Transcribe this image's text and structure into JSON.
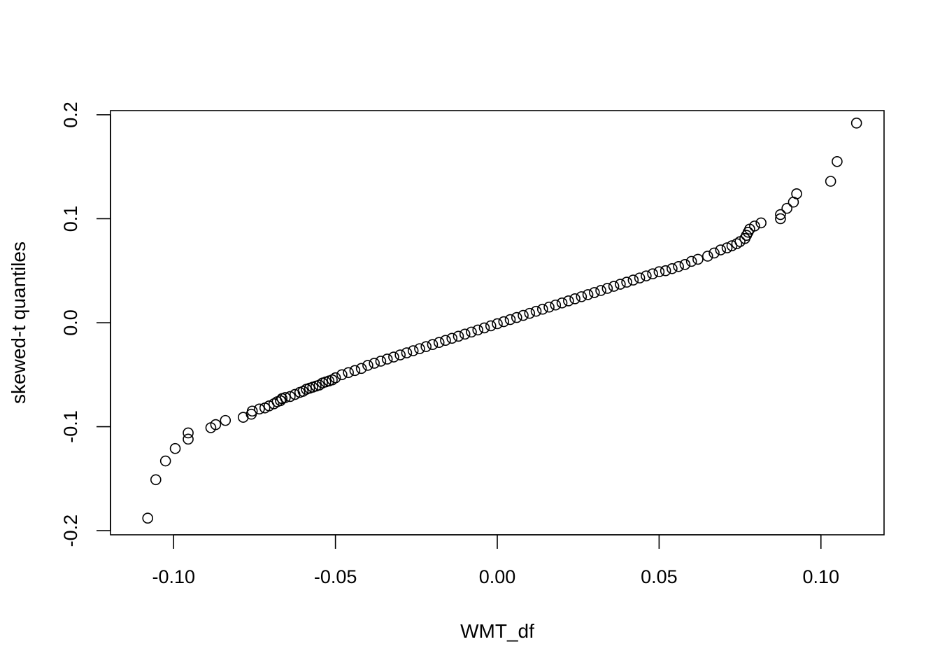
{
  "chart_data": {
    "type": "scatter",
    "title": "",
    "xlabel": "WMT_df",
    "ylabel": "skewed-t quantiles",
    "xlim": [
      -0.1195,
      0.1195
    ],
    "ylim": [
      -0.204,
      0.204
    ],
    "x_ticks": [
      {
        "value": -0.1,
        "label": "-0.10"
      },
      {
        "value": -0.05,
        "label": "-0.05"
      },
      {
        "value": 0.0,
        "label": "0.00"
      },
      {
        "value": 0.05,
        "label": "0.05"
      },
      {
        "value": 0.1,
        "label": "0.10"
      }
    ],
    "y_ticks": [
      {
        "value": -0.2,
        "label": "-0.2"
      },
      {
        "value": -0.1,
        "label": "-0.1"
      },
      {
        "value": 0.0,
        "label": "0.0"
      },
      {
        "value": 0.1,
        "label": "0.1"
      },
      {
        "value": 0.2,
        "label": "0.2"
      }
    ],
    "grid": false,
    "legend": "none",
    "series": [
      {
        "marker": "open-circle",
        "color": "#000000",
        "points": [
          [
            -0.108,
            -0.188
          ],
          [
            -0.1055,
            -0.151
          ],
          [
            -0.1025,
            -0.133
          ],
          [
            -0.0995,
            -0.121
          ],
          [
            -0.0955,
            -0.112
          ],
          [
            -0.0955,
            -0.106
          ],
          [
            -0.0885,
            -0.101
          ],
          [
            -0.087,
            -0.098
          ],
          [
            -0.084,
            -0.094
          ],
          [
            -0.0785,
            -0.091
          ],
          [
            -0.076,
            -0.088
          ],
          [
            -0.0757,
            -0.085
          ],
          [
            -0.0735,
            -0.083
          ],
          [
            -0.0718,
            -0.082
          ],
          [
            -0.0705,
            -0.08
          ],
          [
            -0.069,
            -0.078
          ],
          [
            -0.068,
            -0.076
          ],
          [
            -0.067,
            -0.075
          ],
          [
            -0.0665,
            -0.073
          ],
          [
            -0.0655,
            -0.072
          ],
          [
            -0.064,
            -0.071
          ],
          [
            -0.0625,
            -0.069
          ],
          [
            -0.061,
            -0.067
          ],
          [
            -0.06,
            -0.066
          ],
          [
            -0.059,
            -0.064
          ],
          [
            -0.058,
            -0.063
          ],
          [
            -0.057,
            -0.062
          ],
          [
            -0.056,
            -0.061
          ],
          [
            -0.055,
            -0.06
          ],
          [
            -0.054,
            -0.058
          ],
          [
            -0.053,
            -0.057
          ],
          [
            -0.052,
            -0.056
          ],
          [
            -0.051,
            -0.055
          ],
          [
            -0.05,
            -0.053
          ],
          [
            -0.048,
            -0.05
          ],
          [
            -0.046,
            -0.048
          ],
          [
            -0.044,
            -0.046
          ],
          [
            -0.042,
            -0.044
          ],
          [
            -0.04,
            -0.041
          ],
          [
            -0.038,
            -0.039
          ],
          [
            -0.036,
            -0.037
          ],
          [
            -0.034,
            -0.035
          ],
          [
            -0.032,
            -0.033
          ],
          [
            -0.03,
            -0.031
          ],
          [
            -0.028,
            -0.029
          ],
          [
            -0.026,
            -0.027
          ],
          [
            -0.024,
            -0.025
          ],
          [
            -0.022,
            -0.023
          ],
          [
            -0.02,
            -0.021
          ],
          [
            -0.018,
            -0.019
          ],
          [
            -0.016,
            -0.017
          ],
          [
            -0.014,
            -0.015
          ],
          [
            -0.012,
            -0.013
          ],
          [
            -0.01,
            -0.011
          ],
          [
            -0.008,
            -0.009
          ],
          [
            -0.006,
            -0.007
          ],
          [
            -0.004,
            -0.005
          ],
          [
            -0.002,
            -0.003
          ],
          [
            0.0,
            -0.001
          ],
          [
            0.002,
            0.001
          ],
          [
            0.004,
            0.003
          ],
          [
            0.006,
            0.005
          ],
          [
            0.008,
            0.007
          ],
          [
            0.01,
            0.009
          ],
          [
            0.012,
            0.011
          ],
          [
            0.014,
            0.013
          ],
          [
            0.016,
            0.015
          ],
          [
            0.018,
            0.017
          ],
          [
            0.02,
            0.019
          ],
          [
            0.022,
            0.021
          ],
          [
            0.024,
            0.023
          ],
          [
            0.026,
            0.025
          ],
          [
            0.028,
            0.027
          ],
          [
            0.03,
            0.029
          ],
          [
            0.032,
            0.031
          ],
          [
            0.034,
            0.033
          ],
          [
            0.036,
            0.035
          ],
          [
            0.038,
            0.037
          ],
          [
            0.04,
            0.039
          ],
          [
            0.042,
            0.041
          ],
          [
            0.044,
            0.043
          ],
          [
            0.046,
            0.045
          ],
          [
            0.048,
            0.047
          ],
          [
            0.05,
            0.049
          ],
          [
            0.052,
            0.05
          ],
          [
            0.054,
            0.052
          ],
          [
            0.056,
            0.054
          ],
          [
            0.058,
            0.056
          ],
          [
            0.06,
            0.059
          ],
          [
            0.062,
            0.061
          ],
          [
            0.065,
            0.064
          ],
          [
            0.067,
            0.067
          ],
          [
            0.069,
            0.07
          ],
          [
            0.071,
            0.072
          ],
          [
            0.0725,
            0.074
          ],
          [
            0.074,
            0.076
          ],
          [
            0.075,
            0.078
          ],
          [
            0.0765,
            0.081
          ],
          [
            0.077,
            0.084
          ],
          [
            0.0775,
            0.087
          ],
          [
            0.078,
            0.09
          ],
          [
            0.0795,
            0.093
          ],
          [
            0.0815,
            0.096
          ],
          [
            0.0875,
            0.1
          ],
          [
            0.0875,
            0.104
          ],
          [
            0.0895,
            0.11
          ],
          [
            0.0915,
            0.116
          ],
          [
            0.0925,
            0.124
          ],
          [
            0.103,
            0.136
          ],
          [
            0.105,
            0.155
          ],
          [
            0.111,
            0.192
          ]
        ]
      }
    ]
  }
}
